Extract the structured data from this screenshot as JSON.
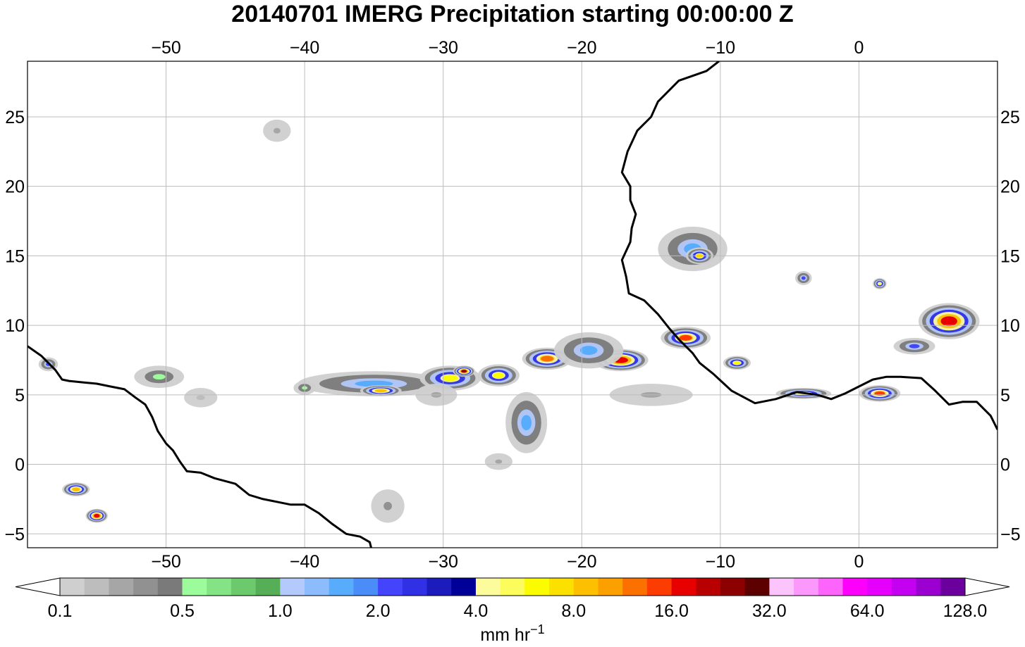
{
  "title": "20140701 IMERG Precipitation  starting 00:00:00 Z",
  "map": {
    "lon_range": [
      -60,
      10
    ],
    "lat_range": [
      -6,
      29
    ],
    "lon_ticks": [
      -50,
      -40,
      -30,
      -20,
      -10,
      0
    ],
    "lon_tick_labels": [
      "−50",
      "−40",
      "−30",
      "−20",
      "−10",
      "0"
    ],
    "lat_ticks": [
      25,
      20,
      15,
      10,
      5,
      0,
      -5
    ],
    "lat_tick_labels": [
      "25",
      "20",
      "15",
      "10",
      "5",
      "0",
      "−5"
    ],
    "gridlines": true,
    "coastline_color": "#000000",
    "gridline_color": "#bdbdbd"
  },
  "colorbar": {
    "colors": [
      "#cfcfcf",
      "#bdbdbd",
      "#a6a6a6",
      "#919191",
      "#7a7a7a",
      "#9cfc9c",
      "#84e384",
      "#6cc96c",
      "#56ae56",
      "#b4c9fc",
      "#8cbcfc",
      "#58acfc",
      "#4a8cf8",
      "#4444fc",
      "#3030e4",
      "#1c1cbc",
      "#000098",
      "#fcfc9c",
      "#fcfc5c",
      "#fcfc00",
      "#fce000",
      "#fcc000",
      "#fca000",
      "#fc7000",
      "#fc3c00",
      "#e80000",
      "#b80000",
      "#8c0000",
      "#5c0000",
      "#fcc4fc",
      "#fc98fc",
      "#fc64fc",
      "#fc00fc",
      "#e400fc",
      "#c400f0",
      "#9c00d0",
      "#6c009c"
    ],
    "labels": [
      "0.1",
      "0.5",
      "1.0",
      "2.0",
      "4.0",
      "8.0",
      "16.0",
      "32.0",
      "64.0",
      "128.0"
    ],
    "label_positions": [
      0,
      5,
      9,
      13,
      17,
      21,
      25,
      29,
      33,
      37
    ],
    "units_text": "mm hr",
    "units_exponent": "−1"
  },
  "precip_features": [
    {
      "lon": -35,
      "lat": 5.8,
      "rx": 5.5,
      "ry": 0.9,
      "intensity": 1.5
    },
    {
      "lon": -34.5,
      "lat": 5.3,
      "rx": 1.5,
      "ry": 0.4,
      "intensity": 8
    },
    {
      "lon": -29.5,
      "lat": 6.2,
      "rx": 2.2,
      "ry": 0.9,
      "intensity": 6
    },
    {
      "lon": -28.5,
      "lat": 6.7,
      "rx": 0.8,
      "ry": 0.4,
      "intensity": 20
    },
    {
      "lon": -26,
      "lat": 6.4,
      "rx": 1.5,
      "ry": 0.8,
      "intensity": 6
    },
    {
      "lon": -22.5,
      "lat": 7.6,
      "rx": 1.8,
      "ry": 0.8,
      "intensity": 10
    },
    {
      "lon": -17.2,
      "lat": 7.5,
      "rx": 2.0,
      "ry": 0.8,
      "intensity": 14
    },
    {
      "lon": -19.5,
      "lat": 8.2,
      "rx": 2.5,
      "ry": 1.3,
      "intensity": 1.5
    },
    {
      "lon": -12.5,
      "lat": 9.1,
      "rx": 1.8,
      "ry": 0.8,
      "intensity": 12
    },
    {
      "lon": -12,
      "lat": 15.5,
      "rx": 2.5,
      "ry": 1.6,
      "intensity": 1.5
    },
    {
      "lon": -11.5,
      "lat": 15,
      "rx": 1.0,
      "ry": 0.6,
      "intensity": 7
    },
    {
      "lon": -8.8,
      "lat": 7.3,
      "rx": 1.0,
      "ry": 0.5,
      "intensity": 6
    },
    {
      "lon": -4,
      "lat": 5.1,
      "rx": 2.0,
      "ry": 0.4,
      "intensity": 5
    },
    {
      "lon": 1.5,
      "lat": 5.1,
      "rx": 1.5,
      "ry": 0.6,
      "intensity": 12
    },
    {
      "lon": 6.5,
      "lat": 10.3,
      "rx": 2.2,
      "ry": 1.3,
      "intensity": 14
    },
    {
      "lon": -56.5,
      "lat": -1.8,
      "rx": 1.0,
      "ry": 0.5,
      "intensity": 8
    },
    {
      "lon": -55,
      "lat": -3.7,
      "rx": 0.8,
      "ry": 0.5,
      "intensity": 14
    },
    {
      "lon": -24,
      "lat": 3.0,
      "rx": 1.5,
      "ry": 2.2,
      "intensity": 1.5
    },
    {
      "lon": -15,
      "lat": 5.0,
      "rx": 3.0,
      "ry": 0.8,
      "intensity": 0.3
    },
    {
      "lon": -50.5,
      "lat": 6.3,
      "rx": 1.8,
      "ry": 0.8,
      "intensity": 0.6
    },
    {
      "lon": -47.5,
      "lat": 4.8,
      "rx": 1.2,
      "ry": 0.7,
      "intensity": 0.2
    },
    {
      "lon": -26,
      "lat": 0.2,
      "rx": 1.0,
      "ry": 0.6,
      "intensity": 0.3
    },
    {
      "lon": -34,
      "lat": -3,
      "rx": 1.2,
      "ry": 1.2,
      "intensity": 0.4
    },
    {
      "lon": -42,
      "lat": 24,
      "rx": 1.0,
      "ry": 0.8,
      "intensity": 0.3
    },
    {
      "lon": 1.5,
      "lat": 13.0,
      "rx": 0.5,
      "ry": 0.4,
      "intensity": 5
    },
    {
      "lon": -4,
      "lat": 13.4,
      "rx": 0.6,
      "ry": 0.5,
      "intensity": 2
    },
    {
      "lon": -58.5,
      "lat": 7.2,
      "rx": 0.7,
      "ry": 0.5,
      "intensity": 2
    },
    {
      "lon": -40,
      "lat": 5.5,
      "rx": 0.8,
      "ry": 0.5,
      "intensity": 0.6
    },
    {
      "lon": -30.5,
      "lat": 5.0,
      "rx": 1.5,
      "ry": 0.8,
      "intensity": 0.3
    },
    {
      "lon": 4,
      "lat": 8.5,
      "rx": 1.5,
      "ry": 0.6,
      "intensity": 2
    }
  ],
  "coastlines": {
    "south_america_north": [
      [
        -60,
        8.5
      ],
      [
        -59,
        7.8
      ],
      [
        -58,
        6.8
      ],
      [
        -57.5,
        6.1
      ],
      [
        -57,
        6
      ],
      [
        -56,
        5.9
      ],
      [
        -55,
        5.8
      ],
      [
        -54,
        5.6
      ],
      [
        -53,
        5.4
      ],
      [
        -52.2,
        4.8
      ],
      [
        -51.5,
        4.3
      ],
      [
        -51,
        3.4
      ],
      [
        -50.6,
        2.4
      ],
      [
        -50,
        1.5
      ],
      [
        -49.5,
        1.0
      ],
      [
        -49,
        0.2
      ],
      [
        -48.5,
        -0.5
      ],
      [
        -47.5,
        -0.6
      ],
      [
        -46.5,
        -1
      ],
      [
        -45,
        -1.4
      ],
      [
        -44,
        -2.2
      ],
      [
        -43,
        -2.5
      ],
      [
        -42,
        -2.7
      ],
      [
        -41,
        -2.9
      ],
      [
        -40,
        -2.9
      ],
      [
        -39,
        -3.5
      ],
      [
        -38,
        -4.3
      ],
      [
        -37,
        -5
      ],
      [
        -36,
        -5.2
      ],
      [
        -35.3,
        -5.6
      ],
      [
        -35.2,
        -6
      ]
    ],
    "africa_west": [
      [
        -10.1,
        29
      ],
      [
        -11,
        28.3
      ],
      [
        -13,
        27.6
      ],
      [
        -14.5,
        26.1
      ],
      [
        -15,
        25
      ],
      [
        -16,
        24
      ],
      [
        -16.7,
        22.5
      ],
      [
        -17.1,
        21
      ],
      [
        -16.5,
        20
      ],
      [
        -16.5,
        19
      ],
      [
        -16.1,
        18
      ],
      [
        -16.4,
        17
      ],
      [
        -16.5,
        16
      ],
      [
        -17.1,
        14.7
      ],
      [
        -16.8,
        13.5
      ],
      [
        -16.6,
        12.3
      ],
      [
        -15.5,
        11.8
      ],
      [
        -14.5,
        10.8
      ],
      [
        -13.7,
        9.8
      ],
      [
        -13,
        9
      ],
      [
        -12,
        8
      ],
      [
        -11.5,
        7.3
      ],
      [
        -10.5,
        6.5
      ],
      [
        -9.2,
        5.3
      ],
      [
        -7.5,
        4.4
      ],
      [
        -6,
        4.7
      ],
      [
        -4.5,
        5.2
      ],
      [
        -3,
        5.0
      ],
      [
        -2,
        4.7
      ],
      [
        -1,
        5.1
      ],
      [
        0,
        5.6
      ],
      [
        1,
        6.1
      ],
      [
        2,
        6.3
      ],
      [
        3,
        6.3
      ],
      [
        4.5,
        6.2
      ],
      [
        5.5,
        5.3
      ],
      [
        6.5,
        4.3
      ],
      [
        7.5,
        4.5
      ],
      [
        8.5,
        4.5
      ],
      [
        9.5,
        3.5
      ],
      [
        10,
        2.5
      ]
    ]
  }
}
